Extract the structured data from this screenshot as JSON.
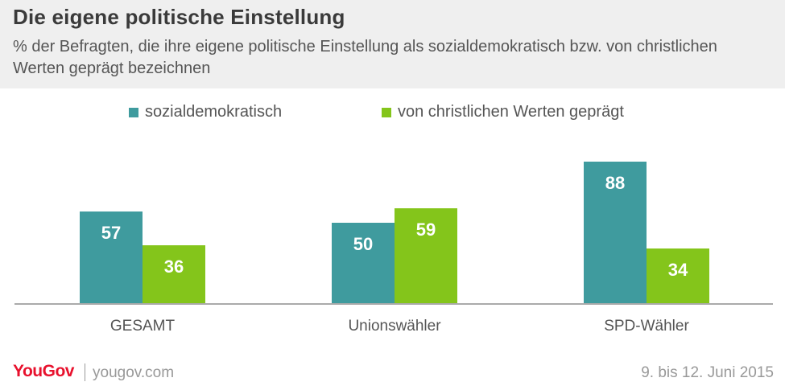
{
  "header": {
    "title": "Die eigene politische Einstellung",
    "subtitle": "% der Befragten, die ihre eigene politische Einstellung als sozialdemokratisch bzw. von christlichen Werten geprägt bezeichnen"
  },
  "legend": {
    "items": [
      {
        "label": "sozialdemokratisch",
        "color": "#3f9b9e"
      },
      {
        "label": "von christlichen Werten geprägt",
        "color": "#84c51b"
      }
    ]
  },
  "chart_data": {
    "type": "bar",
    "categories": [
      "GESAMT",
      "Unionswähler",
      "SPD-Wähler"
    ],
    "series": [
      {
        "name": "sozialdemokratisch",
        "values": [
          57,
          50,
          88
        ],
        "color": "#3f9b9e"
      },
      {
        "name": "von christlichen Werten geprägt",
        "values": [
          36,
          59,
          34
        ],
        "color": "#84c51b"
      }
    ],
    "title": "Die eigene politische Einstellung",
    "xlabel": "",
    "ylabel": "",
    "ylim": [
      0,
      100
    ],
    "grid": false,
    "data_labels": true,
    "legend_position": "top"
  },
  "footer": {
    "brand_part1": "You",
    "brand_part2": "Gov",
    "site": "yougov.com",
    "date": "9. bis 12. Juni 2015"
  }
}
